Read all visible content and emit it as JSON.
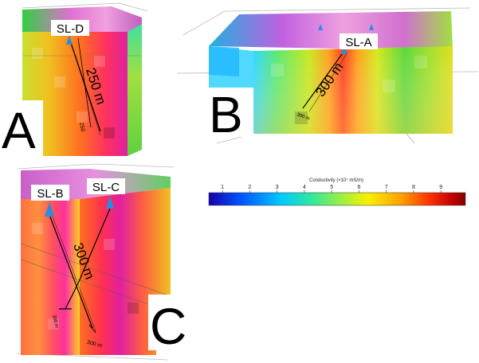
{
  "panels": [
    {
      "letter": "A",
      "wells": [
        "SL-D"
      ],
      "distance_labels": [
        "250 m",
        "250"
      ]
    },
    {
      "letter": "B",
      "wells": [
        "SL-A"
      ],
      "distance_labels": [
        "300 m",
        "300 m"
      ]
    },
    {
      "letter": "C",
      "wells": [
        "SL-B",
        "SL-C"
      ],
      "distance_labels": [
        "300 m",
        "300 m",
        "300 m"
      ]
    }
  ],
  "colorbar": {
    "title": "Conductivity (×10⁷ mS/m)",
    "ticks": [
      "1",
      "2",
      "3",
      "4",
      "5",
      "6",
      "7",
      "8",
      "9"
    ],
    "min": 0.5,
    "max": 9.9,
    "colors": [
      "#1a00a8",
      "#0050ff",
      "#00c8ff",
      "#30e8a0",
      "#a0f040",
      "#f8f000",
      "#ffa000",
      "#ff3000",
      "#c00000",
      "#800000"
    ]
  },
  "well_marker_color": "#2a8ce0"
}
